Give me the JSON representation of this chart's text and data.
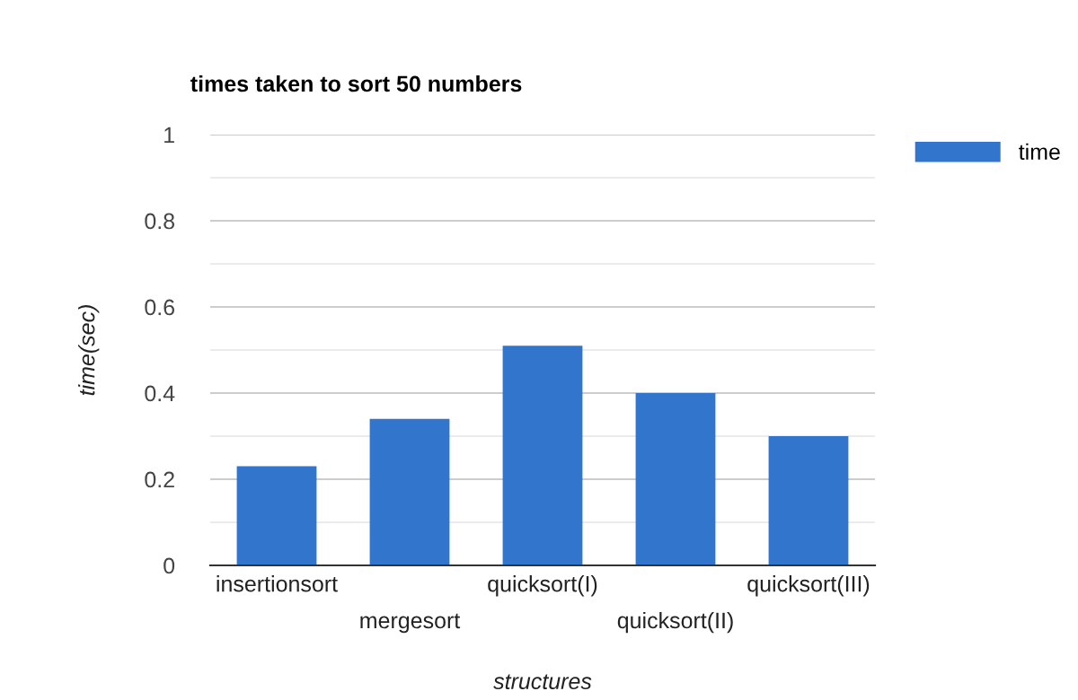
{
  "chart_data": {
    "type": "bar",
    "title": "times taken to sort 50 numbers",
    "xlabel": "structures",
    "ylabel": "time(sec)",
    "categories": [
      "insertionsort",
      "mergesort",
      "quicksort(I)",
      "quicksort(II)",
      "quicksort(III)"
    ],
    "series": [
      {
        "name": "time",
        "color": "#3275cc",
        "values": [
          0.23,
          0.34,
          0.51,
          0.4,
          0.3
        ]
      }
    ],
    "ylim": [
      0,
      1
    ],
    "yticks": [
      0,
      {
        "value": 0.1,
        "label": null
      },
      {
        "value": 0.2,
        "label": "0.2"
      },
      {
        "value": 0.3,
        "label": null
      },
      {
        "value": 0.4,
        "label": "0.4"
      },
      {
        "value": 0.5,
        "label": null
      },
      {
        "value": 0.6,
        "label": "0.6"
      },
      {
        "value": 0.7,
        "label": null
      },
      {
        "value": 0.8,
        "label": "0.8"
      },
      {
        "value": 0.9,
        "label": null
      },
      1
    ],
    "grid": "y",
    "legend": "right"
  }
}
